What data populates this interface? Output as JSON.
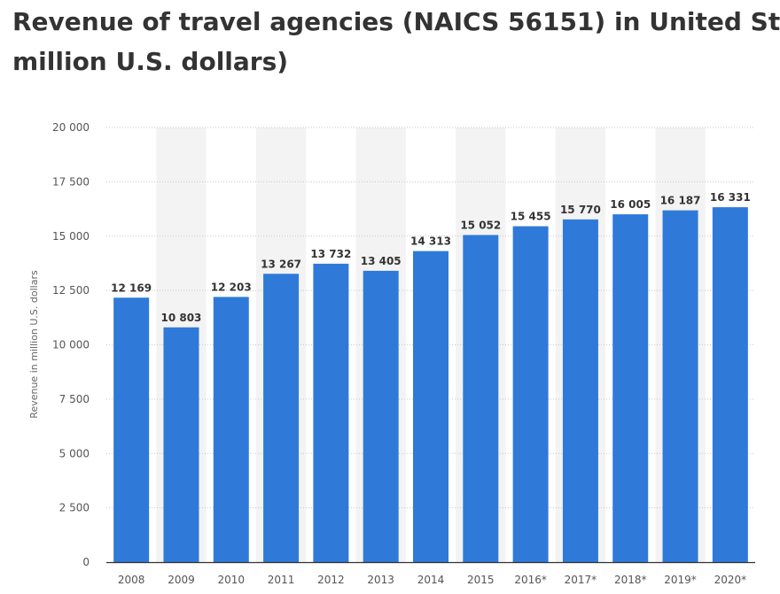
{
  "title_line1": "Revenue of travel agencies (NAICS 56151) in United St",
  "title_line2": "million U.S. dollars)",
  "colors": {
    "bar": "#2f7ad8",
    "band": "#f3f3f3",
    "grid": "#c8c8c8",
    "axis": "#333333",
    "text": "#333333"
  },
  "chart_data": {
    "type": "bar",
    "title": "Revenue of travel agencies (NAICS 56151) in United St million U.S. dollars)",
    "xlabel": "",
    "ylabel": "Revenue in million U.S. dollars",
    "categories": [
      "2008",
      "2009",
      "2010",
      "2011",
      "2012",
      "2013",
      "2014",
      "2015",
      "2016*",
      "2017*",
      "2018*",
      "2019*",
      "2020*"
    ],
    "values": [
      12169,
      10803,
      12203,
      13267,
      13732,
      13405,
      14313,
      15052,
      15455,
      15770,
      16005,
      16187,
      16331
    ],
    "value_labels": [
      "12 169",
      "10 803",
      "12 203",
      "13 267",
      "13 732",
      "13 405",
      "14 313",
      "15 052",
      "15 455",
      "15 770",
      "16 005",
      "16 187",
      "16 331"
    ],
    "yticks": [
      0,
      2500,
      5000,
      7500,
      10000,
      12500,
      15000,
      17500,
      20000
    ],
    "ytick_labels": [
      "0",
      "2 500",
      "5 000",
      "7 500",
      "10 000",
      "12 500",
      "15 000",
      "17 500",
      "20 000"
    ],
    "ylim": [
      0,
      20000
    ],
    "grid": true,
    "legend": "none"
  }
}
